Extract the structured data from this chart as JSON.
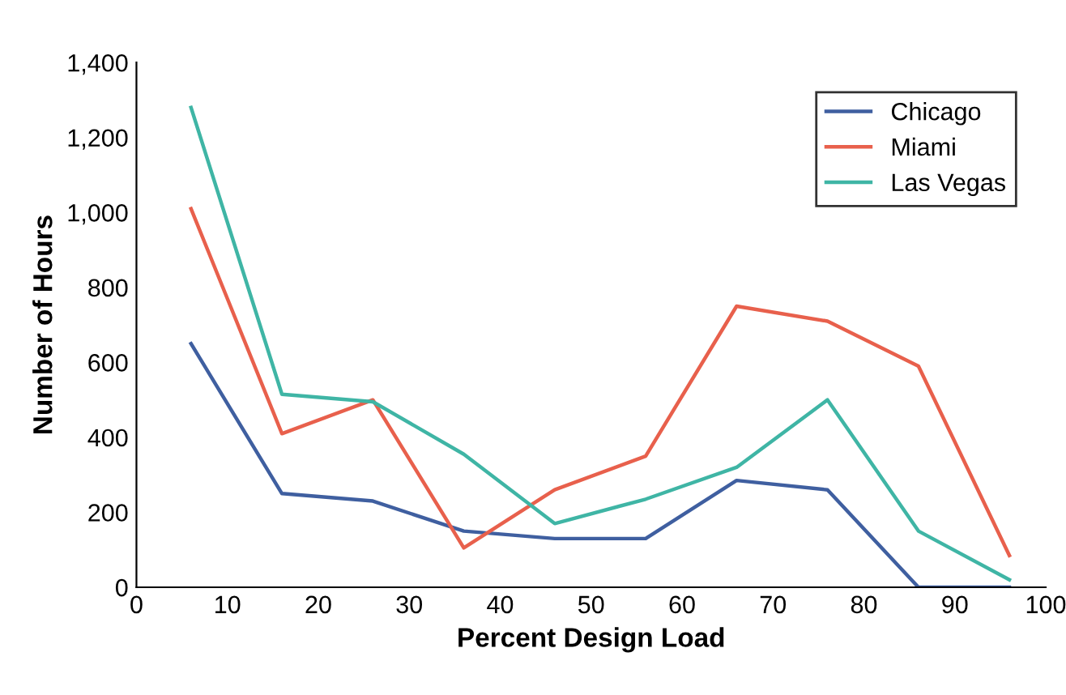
{
  "chart_data": {
    "type": "line",
    "xlabel": "Percent Design Load",
    "ylabel": "Number of Hours",
    "x": [
      6,
      16,
      26,
      36,
      46,
      56,
      66,
      76,
      86,
      96
    ],
    "series": [
      {
        "name": "Chicago",
        "color": "#3f5fa0",
        "values": [
          650,
          250,
          230,
          150,
          130,
          130,
          285,
          260,
          0,
          0
        ]
      },
      {
        "name": "Miami",
        "color": "#e8604c",
        "values": [
          1010,
          410,
          500,
          105,
          260,
          350,
          750,
          710,
          590,
          85
        ]
      },
      {
        "name": "Las Vegas",
        "color": "#3fb5a5",
        "values": [
          1280,
          515,
          495,
          355,
          170,
          235,
          320,
          500,
          150,
          20
        ]
      }
    ],
    "xlim": [
      0,
      100
    ],
    "xticks": [
      0,
      10,
      20,
      30,
      40,
      50,
      60,
      70,
      80,
      90,
      100
    ],
    "ylim": [
      0,
      1400
    ],
    "yticks": [
      {
        "value": 0,
        "label": "0"
      },
      {
        "value": 200,
        "label": "200"
      },
      {
        "value": 400,
        "label": "400"
      },
      {
        "value": 600,
        "label": "600"
      },
      {
        "value": 800,
        "label": "800"
      },
      {
        "value": 1000,
        "label": "1,000"
      },
      {
        "value": 1200,
        "label": "1,200"
      },
      {
        "value": 1400,
        "label": "1,400"
      }
    ],
    "grid": false,
    "legend": "top right",
    "marker": "none",
    "line_style": "solid"
  }
}
